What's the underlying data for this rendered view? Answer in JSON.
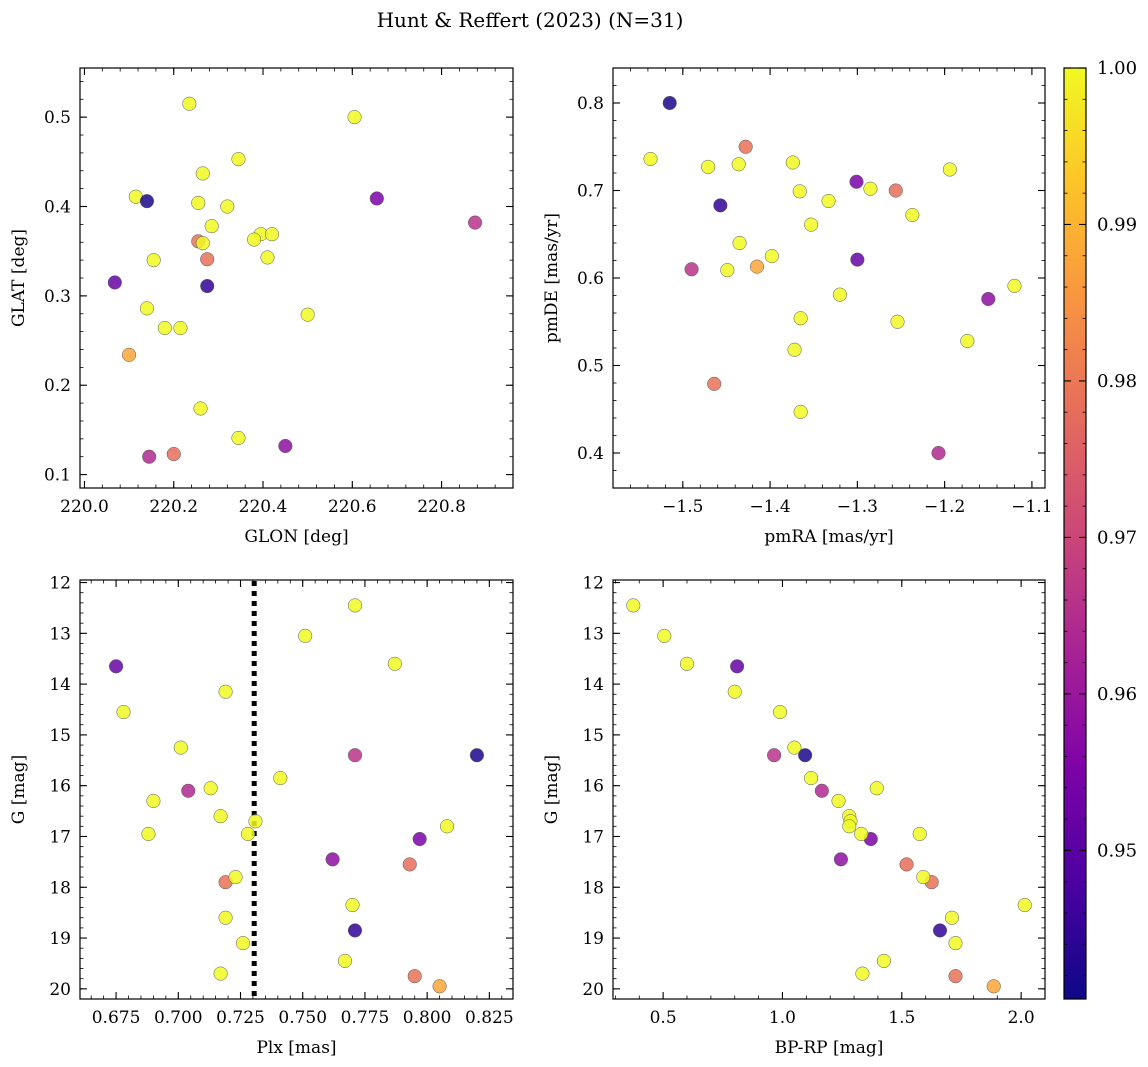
{
  "figure": {
    "title": "Hunt & Reffert (2023) (N=31)"
  },
  "colorbar": {
    "colormap": "plasma",
    "range": [
      0.9405,
      1.0
    ],
    "ticks": [
      0.95,
      0.96,
      0.97,
      0.98,
      0.99,
      1.0
    ],
    "tick_labels": [
      "0.95",
      "0.96",
      "0.97",
      "0.98",
      "0.99",
      "1.00"
    ]
  },
  "chart_data": [
    {
      "type": "scatter",
      "id": "p1",
      "title": "",
      "xlabel": "GLON [deg]",
      "ylabel": "GLAT [deg]",
      "xlim": [
        219.99,
        220.96
      ],
      "ylim": [
        0.085,
        0.555
      ],
      "xticks": [
        220.0,
        220.2,
        220.4,
        220.6,
        220.8
      ],
      "xtick_labels": [
        "220.0",
        "220.2",
        "220.4",
        "220.6",
        "220.8"
      ],
      "yticks": [
        0.1,
        0.2,
        0.3,
        0.4,
        0.5
      ],
      "ytick_labels": [
        "0.1",
        "0.2",
        "0.3",
        "0.4",
        "0.5"
      ],
      "x": [
        220.235,
        220.605,
        220.345,
        220.265,
        220.115,
        220.14,
        220.255,
        220.32,
        220.285,
        220.395,
        220.42,
        220.38,
        220.255,
        220.265,
        220.41,
        220.155,
        220.275,
        220.068,
        220.275,
        220.14,
        220.5,
        220.18,
        220.215,
        220.1,
        220.26,
        220.345,
        220.45,
        220.2,
        220.145,
        220.655,
        220.875
      ],
      "y": [
        0.515,
        0.5,
        0.453,
        0.437,
        0.411,
        0.406,
        0.404,
        0.4,
        0.378,
        0.369,
        0.369,
        0.363,
        0.361,
        0.359,
        0.343,
        0.34,
        0.341,
        0.315,
        0.311,
        0.286,
        0.279,
        0.264,
        0.264,
        0.234,
        0.174,
        0.141,
        0.132,
        0.123,
        0.12,
        0.409,
        0.382
      ],
      "c": [
        1.0,
        1.0,
        1.0,
        1.0,
        1.0,
        0.942,
        1.0,
        1.0,
        1.0,
        1.0,
        1.0,
        1.0,
        0.979,
        1.0,
        1.0,
        1.0,
        0.979,
        0.952,
        0.945,
        1.0,
        1.0,
        1.0,
        1.0,
        0.988,
        1.0,
        1.0,
        0.958,
        0.978,
        0.964,
        0.955,
        0.966
      ]
    },
    {
      "type": "scatter",
      "id": "p2",
      "title": "",
      "xlabel": "pmRA [mas/yr]",
      "ylabel": "pmDE [mas/yr]",
      "xlim": [
        -1.58,
        -1.085
      ],
      "ylim": [
        0.36,
        0.84
      ],
      "xticks": [
        -1.5,
        -1.4,
        -1.3,
        -1.2,
        -1.1
      ],
      "xtick_labels": [
        "−1.5",
        "−1.4",
        "−1.3",
        "−1.2",
        "−1.1"
      ],
      "yticks": [
        0.4,
        0.5,
        0.6,
        0.7,
        0.8
      ],
      "ytick_labels": [
        "0.4",
        "0.5",
        "0.6",
        "0.7",
        "0.8"
      ],
      "x": [
        -1.515,
        -1.537,
        -1.471,
        -1.436,
        -1.428,
        -1.374,
        -1.366,
        -1.301,
        -1.285,
        -1.256,
        -1.194,
        -1.457,
        -1.333,
        -1.237,
        -1.353,
        -1.435,
        -1.398,
        -1.415,
        -1.49,
        -1.449,
        -1.3,
        -1.15,
        -1.12,
        -1.32,
        -1.365,
        -1.254,
        -1.174,
        -1.372,
        -1.464,
        -1.365,
        -1.207
      ],
      "y": [
        0.8,
        0.736,
        0.727,
        0.73,
        0.75,
        0.732,
        0.699,
        0.71,
        0.702,
        0.7,
        0.724,
        0.683,
        0.688,
        0.672,
        0.661,
        0.64,
        0.625,
        0.613,
        0.61,
        0.609,
        0.621,
        0.576,
        0.591,
        0.581,
        0.554,
        0.55,
        0.528,
        0.518,
        0.479,
        0.447,
        0.4
      ],
      "c": [
        0.942,
        1.0,
        1.0,
        1.0,
        0.979,
        1.0,
        1.0,
        0.955,
        1.0,
        0.978,
        1.0,
        0.945,
        1.0,
        1.0,
        1.0,
        1.0,
        1.0,
        0.988,
        0.966,
        1.0,
        0.952,
        0.958,
        1.0,
        1.0,
        1.0,
        1.0,
        1.0,
        1.0,
        0.979,
        1.0,
        0.964
      ]
    },
    {
      "type": "scatter",
      "id": "p3",
      "title": "",
      "xlabel": "Plx [mas]",
      "ylabel": "G [mag]",
      "xlim": [
        0.6605,
        0.8345
      ],
      "ylim": [
        20.2,
        11.95
      ],
      "y_inverted": true,
      "xticks": [
        0.675,
        0.7,
        0.725,
        0.75,
        0.775,
        0.8,
        0.825
      ],
      "xtick_labels": [
        "0.675",
        "0.700",
        "0.725",
        "0.750",
        "0.775",
        "0.800",
        "0.825"
      ],
      "yticks": [
        12,
        13,
        14,
        15,
        16,
        17,
        18,
        19,
        20
      ],
      "ytick_labels": [
        "12",
        "13",
        "14",
        "15",
        "16",
        "17",
        "18",
        "19",
        "20"
      ],
      "vline": {
        "x": 0.7305,
        "style": "dotted"
      },
      "x": [
        0.771,
        0.751,
        0.787,
        0.675,
        0.719,
        0.678,
        0.701,
        0.771,
        0.82,
        0.741,
        0.704,
        0.713,
        0.69,
        0.717,
        0.808,
        0.731,
        0.688,
        0.728,
        0.797,
        0.762,
        0.793,
        0.719,
        0.723,
        0.77,
        0.719,
        0.771,
        0.726,
        0.767,
        0.717,
        0.795,
        0.805
      ],
      "y": [
        12.45,
        13.05,
        13.6,
        13.65,
        14.15,
        14.55,
        15.25,
        15.4,
        15.4,
        15.85,
        16.1,
        16.05,
        16.3,
        16.6,
        16.8,
        16.7,
        16.95,
        16.95,
        17.05,
        17.45,
        17.55,
        17.9,
        17.8,
        18.35,
        18.6,
        18.85,
        19.1,
        19.45,
        19.7,
        19.75,
        19.95
      ],
      "c": [
        1.0,
        1.0,
        1.0,
        0.952,
        1.0,
        1.0,
        1.0,
        0.966,
        0.942,
        1.0,
        0.964,
        1.0,
        1.0,
        1.0,
        1.0,
        1.0,
        1.0,
        1.0,
        0.955,
        0.958,
        0.978,
        0.979,
        1.0,
        1.0,
        1.0,
        0.945,
        1.0,
        1.0,
        1.0,
        0.979,
        0.988
      ]
    },
    {
      "type": "scatter",
      "id": "p4",
      "title": "",
      "xlabel": "BP-RP [mag]",
      "ylabel": "G [mag]",
      "xlim": [
        0.29,
        2.1
      ],
      "ylim": [
        20.2,
        11.95
      ],
      "y_inverted": true,
      "xticks": [
        0.5,
        1.0,
        1.5,
        2.0
      ],
      "xtick_labels": [
        "0.5",
        "1.0",
        "1.5",
        "2.0"
      ],
      "yticks": [
        12,
        13,
        14,
        15,
        16,
        17,
        18,
        19,
        20
      ],
      "ytick_labels": [
        "12",
        "13",
        "14",
        "15",
        "16",
        "17",
        "18",
        "19",
        "20"
      ],
      "x": [
        0.375,
        0.505,
        0.6,
        0.81,
        0.8,
        0.99,
        1.05,
        0.965,
        1.095,
        1.12,
        1.165,
        1.235,
        1.395,
        1.28,
        1.285,
        1.575,
        1.37,
        1.33,
        1.245,
        1.52,
        1.625,
        1.59,
        1.71,
        2.015,
        1.66,
        1.725,
        1.425,
        1.335,
        1.725,
        1.885,
        1.28
      ],
      "y": [
        12.45,
        13.05,
        13.6,
        13.65,
        14.15,
        14.55,
        15.25,
        15.4,
        15.4,
        15.85,
        16.1,
        16.3,
        16.05,
        16.6,
        16.7,
        16.95,
        17.05,
        16.95,
        17.45,
        17.55,
        17.9,
        17.8,
        18.6,
        18.35,
        18.85,
        19.1,
        19.45,
        19.7,
        19.75,
        19.95,
        16.8
      ],
      "c": [
        1.0,
        1.0,
        1.0,
        0.952,
        1.0,
        1.0,
        1.0,
        0.966,
        0.942,
        1.0,
        0.964,
        1.0,
        1.0,
        1.0,
        1.0,
        1.0,
        0.955,
        1.0,
        0.958,
        0.978,
        0.979,
        1.0,
        1.0,
        1.0,
        0.945,
        1.0,
        1.0,
        1.0,
        0.979,
        0.988,
        1.0
      ]
    }
  ]
}
